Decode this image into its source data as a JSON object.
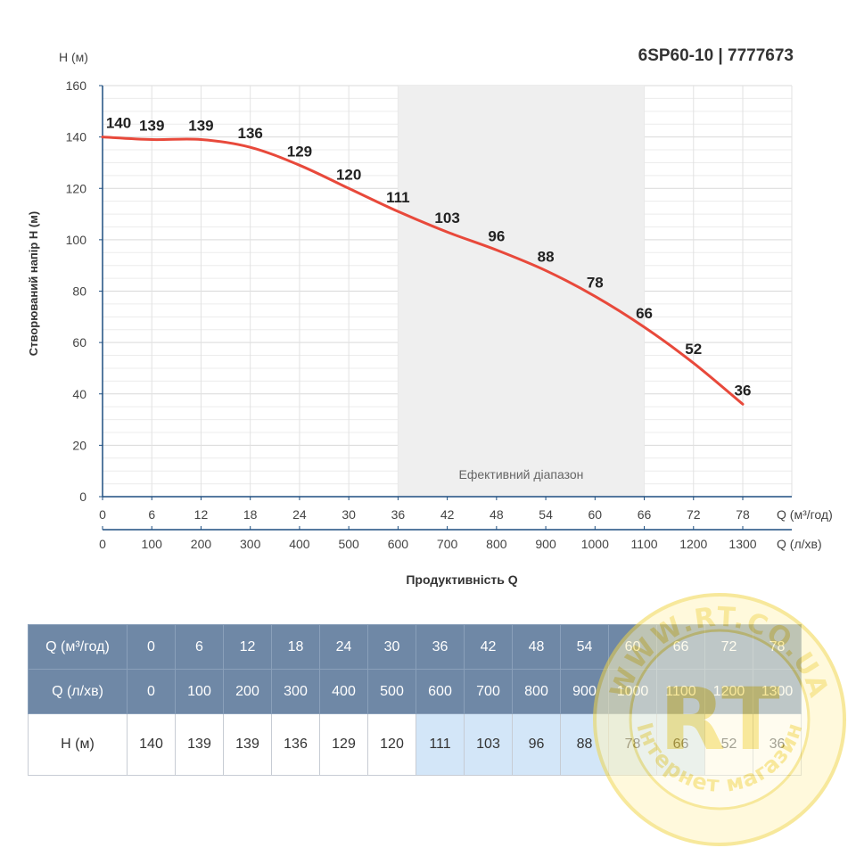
{
  "title": "6SP60-10 | 7777673",
  "chart_data": {
    "type": "line",
    "x": [
      0,
      6,
      12,
      18,
      24,
      30,
      36,
      42,
      48,
      54,
      60,
      66,
      72,
      78
    ],
    "x_secondary": [
      0,
      100,
      200,
      300,
      400,
      500,
      600,
      700,
      800,
      900,
      1000,
      1100,
      1200,
      1300
    ],
    "series": [
      {
        "values": [
          140,
          139,
          139,
          136,
          129,
          120,
          111,
          103,
          96,
          88,
          78,
          66,
          52,
          36
        ]
      }
    ],
    "y_unit_label": "H (м)",
    "ylabel": "Створюваний напір H (м)",
    "xlabel": "Продуктивність Q",
    "x_unit_label": "Q (м³/год)",
    "x_secondary_unit_label": "Q (л/хв)",
    "xlim": [
      0,
      78
    ],
    "ylim": [
      0,
      160
    ],
    "y_ticks": [
      0,
      20,
      40,
      60,
      80,
      100,
      120,
      140,
      160
    ],
    "effective_range": [
      36,
      66
    ],
    "effective_range_label": "Ефективний діапазон",
    "grid": true,
    "line_color": "#e8493b"
  },
  "table": {
    "row_labels": [
      "Q (м³/год)",
      "Q (л/хв)",
      "H (м)"
    ],
    "q_m3h": [
      "0",
      "6",
      "12",
      "18",
      "24",
      "30",
      "36",
      "42",
      "48",
      "54",
      "60",
      "66",
      "72",
      "78"
    ],
    "q_lmin": [
      "0",
      "100",
      "200",
      "300",
      "400",
      "500",
      "600",
      "700",
      "800",
      "900",
      "1000",
      "1100",
      "1200",
      "1300"
    ],
    "h_m": [
      "140",
      "139",
      "139",
      "136",
      "129",
      "120",
      "111",
      "103",
      "96",
      "88",
      "78",
      "66",
      "52",
      "36"
    ]
  },
  "watermark": {
    "text_top": "WWW.RT.CO.UA",
    "text_bottom": "Інтернет магазин",
    "logo": "RT"
  }
}
